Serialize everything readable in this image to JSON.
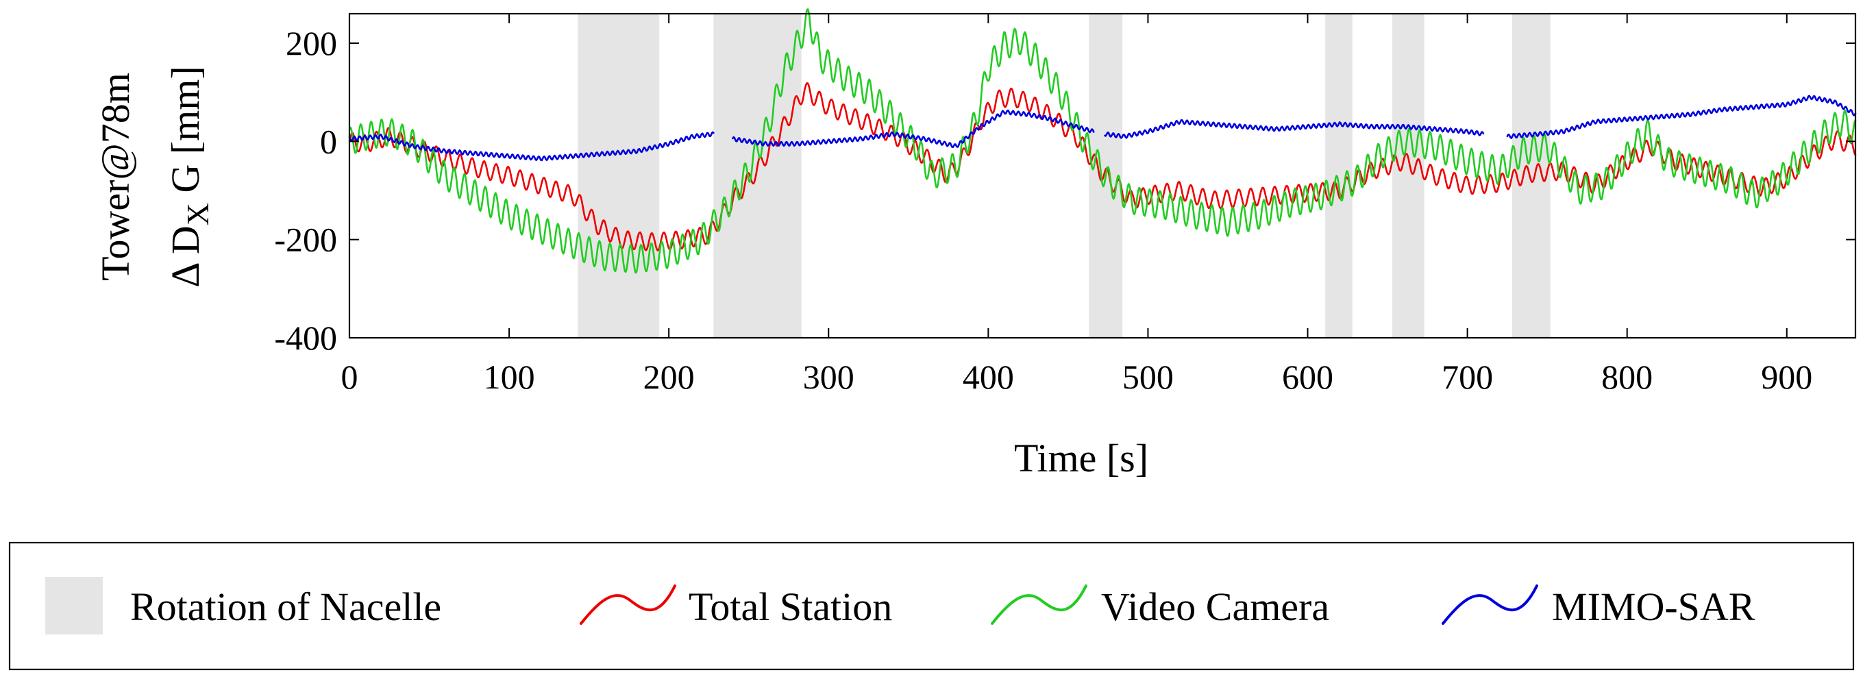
{
  "chart_data": {
    "type": "line",
    "title": "",
    "xlabel": "Time [s]",
    "ylabel_line1": "Tower@78m",
    "ylabel_line2": {
      "prefix": "Δ D",
      "sub": "X",
      "suffix": " G [mm]"
    },
    "xlim": [
      0,
      943
    ],
    "ylim": [
      -400,
      260
    ],
    "xticks": [
      0,
      100,
      200,
      300,
      400,
      500,
      600,
      700,
      800,
      900
    ],
    "yticks": [
      200,
      0,
      -200,
      -400
    ],
    "grid": false,
    "legend_position": "bottom",
    "shaded_regions_label": "Rotation of Nacelle",
    "shaded_color": "#e5e5e5",
    "shaded_regions": [
      [
        143,
        194
      ],
      [
        228,
        283
      ],
      [
        463,
        484
      ],
      [
        611,
        628
      ],
      [
        653,
        673
      ],
      [
        728,
        752
      ]
    ],
    "series": [
      {
        "name": "Total Station",
        "color": "#ee0000",
        "oscillation": {
          "amplitude": 18,
          "period": 7.5
        },
        "points": [
          [
            0,
            0
          ],
          [
            10,
            -5
          ],
          [
            25,
            10
          ],
          [
            40,
            -10
          ],
          [
            60,
            -35
          ],
          [
            80,
            -55
          ],
          [
            100,
            -70
          ],
          [
            120,
            -90
          ],
          [
            140,
            -110
          ],
          [
            155,
            -170
          ],
          [
            170,
            -200
          ],
          [
            190,
            -205
          ],
          [
            210,
            -200
          ],
          [
            225,
            -190
          ],
          [
            240,
            -120
          ],
          [
            255,
            -60
          ],
          [
            270,
            20
          ],
          [
            285,
            105
          ],
          [
            300,
            70
          ],
          [
            315,
            50
          ],
          [
            330,
            30
          ],
          [
            345,
            5
          ],
          [
            360,
            -30
          ],
          [
            375,
            -70
          ],
          [
            385,
            -30
          ],
          [
            395,
            40
          ],
          [
            405,
            85
          ],
          [
            415,
            90
          ],
          [
            425,
            80
          ],
          [
            440,
            50
          ],
          [
            455,
            10
          ],
          [
            470,
            -60
          ],
          [
            480,
            -90
          ],
          [
            490,
            -120
          ],
          [
            500,
            -110
          ],
          [
            520,
            -100
          ],
          [
            540,
            -120
          ],
          [
            560,
            -115
          ],
          [
            580,
            -110
          ],
          [
            600,
            -105
          ],
          [
            620,
            -100
          ],
          [
            640,
            -60
          ],
          [
            660,
            -40
          ],
          [
            680,
            -70
          ],
          [
            700,
            -90
          ],
          [
            720,
            -85
          ],
          [
            740,
            -65
          ],
          [
            760,
            -60
          ],
          [
            780,
            -90
          ],
          [
            800,
            -40
          ],
          [
            815,
            -10
          ],
          [
            830,
            -40
          ],
          [
            850,
            -60
          ],
          [
            870,
            -80
          ],
          [
            885,
            -95
          ],
          [
            900,
            -75
          ],
          [
            915,
            -30
          ],
          [
            930,
            5
          ],
          [
            943,
            -10
          ]
        ]
      },
      {
        "name": "Video Camera",
        "color": "#22cc22",
        "oscillation": {
          "amplitude": 28,
          "period": 6.5
        },
        "points": [
          [
            0,
            0
          ],
          [
            10,
            10
          ],
          [
            25,
            20
          ],
          [
            40,
            -5
          ],
          [
            60,
            -70
          ],
          [
            80,
            -110
          ],
          [
            100,
            -150
          ],
          [
            120,
            -180
          ],
          [
            140,
            -210
          ],
          [
            160,
            -235
          ],
          [
            180,
            -240
          ],
          [
            200,
            -230
          ],
          [
            220,
            -200
          ],
          [
            235,
            -140
          ],
          [
            250,
            -60
          ],
          [
            262,
            30
          ],
          [
            272,
            140
          ],
          [
            282,
            210
          ],
          [
            288,
            250
          ],
          [
            295,
            170
          ],
          [
            310,
            130
          ],
          [
            325,
            100
          ],
          [
            340,
            50
          ],
          [
            355,
            -10
          ],
          [
            365,
            -70
          ],
          [
            380,
            -50
          ],
          [
            392,
            40
          ],
          [
            400,
            150
          ],
          [
            410,
            195
          ],
          [
            420,
            205
          ],
          [
            430,
            170
          ],
          [
            445,
            100
          ],
          [
            460,
            0
          ],
          [
            475,
            -80
          ],
          [
            490,
            -120
          ],
          [
            510,
            -130
          ],
          [
            530,
            -150
          ],
          [
            550,
            -165
          ],
          [
            570,
            -150
          ],
          [
            590,
            -125
          ],
          [
            610,
            -110
          ],
          [
            630,
            -80
          ],
          [
            645,
            -30
          ],
          [
            660,
            0
          ],
          [
            680,
            -10
          ],
          [
            700,
            -40
          ],
          [
            720,
            -60
          ],
          [
            735,
            -20
          ],
          [
            750,
            -10
          ],
          [
            770,
            -100
          ],
          [
            785,
            -90
          ],
          [
            800,
            -30
          ],
          [
            812,
            20
          ],
          [
            825,
            -40
          ],
          [
            845,
            -60
          ],
          [
            865,
            -80
          ],
          [
            880,
            -110
          ],
          [
            895,
            -80
          ],
          [
            910,
            -30
          ],
          [
            925,
            20
          ],
          [
            935,
            40
          ],
          [
            943,
            15
          ]
        ]
      },
      {
        "name": "MIMO-SAR",
        "color": "#0000dd",
        "oscillation": {
          "amplitude": 4,
          "period": 3.3
        },
        "points": [
          [
            0,
            5
          ],
          [
            20,
            10
          ],
          [
            40,
            -10
          ],
          [
            60,
            -20
          ],
          [
            80,
            -25
          ],
          [
            100,
            -30
          ],
          [
            120,
            -35
          ],
          [
            140,
            -30
          ],
          [
            160,
            -25
          ],
          [
            180,
            -20
          ],
          [
            200,
            -5
          ],
          [
            215,
            10
          ],
          [
            228,
            15
          ],
          [
            null,
            null
          ],
          [
            240,
            5
          ],
          [
            260,
            -5
          ],
          [
            280,
            -5
          ],
          [
            300,
            0
          ],
          [
            320,
            5
          ],
          [
            340,
            15
          ],
          [
            360,
            5
          ],
          [
            380,
            -10
          ],
          [
            395,
            30
          ],
          [
            410,
            60
          ],
          [
            425,
            55
          ],
          [
            440,
            45
          ],
          [
            455,
            30
          ],
          [
            466,
            20
          ],
          [
            null,
            null
          ],
          [
            473,
            15
          ],
          [
            485,
            10
          ],
          [
            500,
            20
          ],
          [
            520,
            40
          ],
          [
            540,
            35
          ],
          [
            560,
            30
          ],
          [
            580,
            25
          ],
          [
            600,
            30
          ],
          [
            620,
            35
          ],
          [
            640,
            30
          ],
          [
            660,
            30
          ],
          [
            680,
            25
          ],
          [
            700,
            20
          ],
          [
            710,
            15
          ],
          [
            null,
            null
          ],
          [
            725,
            10
          ],
          [
            745,
            15
          ],
          [
            760,
            20
          ],
          [
            780,
            40
          ],
          [
            800,
            45
          ],
          [
            820,
            50
          ],
          [
            840,
            55
          ],
          [
            860,
            65
          ],
          [
            880,
            70
          ],
          [
            900,
            75
          ],
          [
            915,
            90
          ],
          [
            930,
            80
          ],
          [
            943,
            55
          ]
        ]
      }
    ]
  }
}
